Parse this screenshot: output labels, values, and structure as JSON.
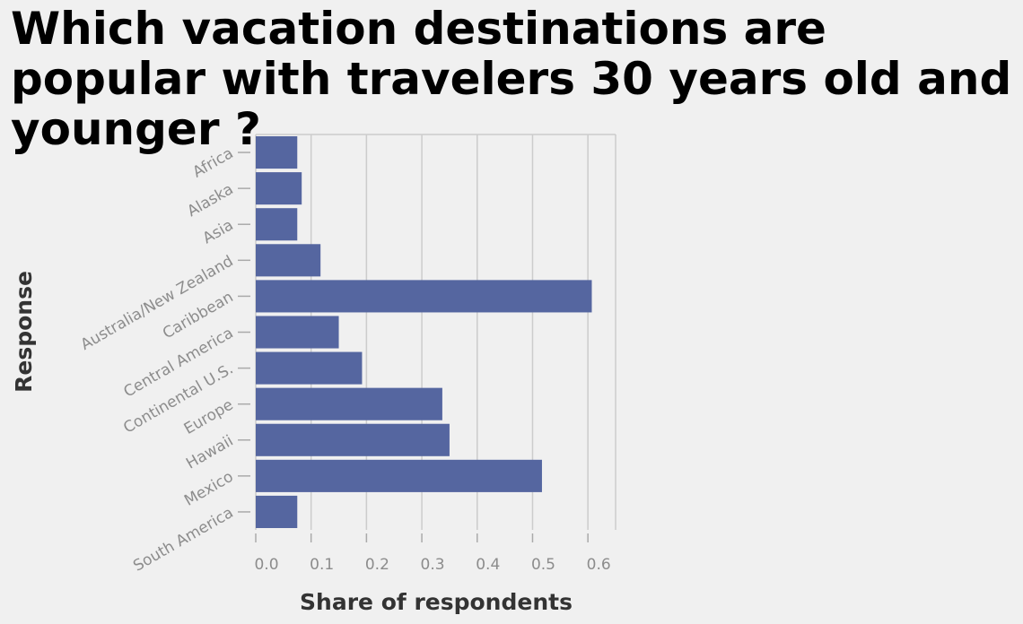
{
  "chart_data": {
    "type": "bar",
    "orientation": "horizontal",
    "title": "Which vacation destinations are popular with travelers 30 years old and younger ?",
    "xlabel": "Share of respondents",
    "ylabel": "Response",
    "categories": [
      "Africa",
      "Alaska",
      "Asia",
      "Australia/New Zealand",
      "Caribbean",
      "Central America",
      "Continental U.S.",
      "Europe",
      "Hawaii",
      "Mexico",
      "South America"
    ],
    "values": [
      0.075,
      0.083,
      0.075,
      0.117,
      0.607,
      0.15,
      0.192,
      0.337,
      0.35,
      0.517,
      0.075
    ],
    "xlim": [
      0,
      0.65
    ],
    "xticks": [
      "0.0",
      "0.1",
      "0.2",
      "0.3",
      "0.4",
      "0.5",
      "0.6"
    ],
    "grid": true,
    "bar_color": "#5566a0",
    "grid_color": "#cccccc",
    "tick_label_color": "#8c8c8c"
  }
}
